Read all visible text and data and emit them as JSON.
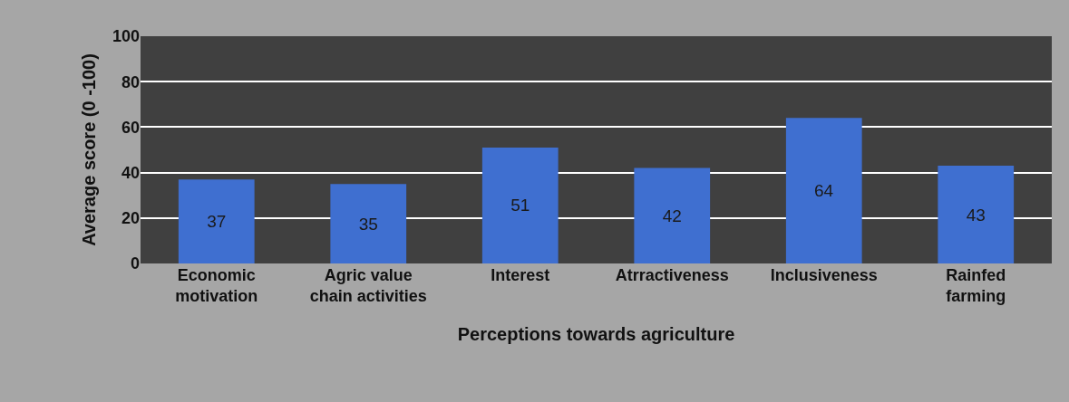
{
  "chart_data": {
    "type": "bar",
    "xlabel": "Perceptions towards agriculture",
    "ylabel": "Average score (0 -100)",
    "categories": [
      "Economic\nmotivation",
      "Agric value\nchain activities",
      "Interest",
      "Atrractiveness",
      "Inclusiveness",
      "Rainfed\nfarming"
    ],
    "values": [
      37,
      35,
      51,
      42,
      64,
      43
    ],
    "color": "#3f6fd0",
    "data_labels": true,
    "ylim": [
      0,
      100
    ],
    "yticks": [
      0,
      20,
      40,
      60,
      80,
      100
    ],
    "grid": "y"
  }
}
